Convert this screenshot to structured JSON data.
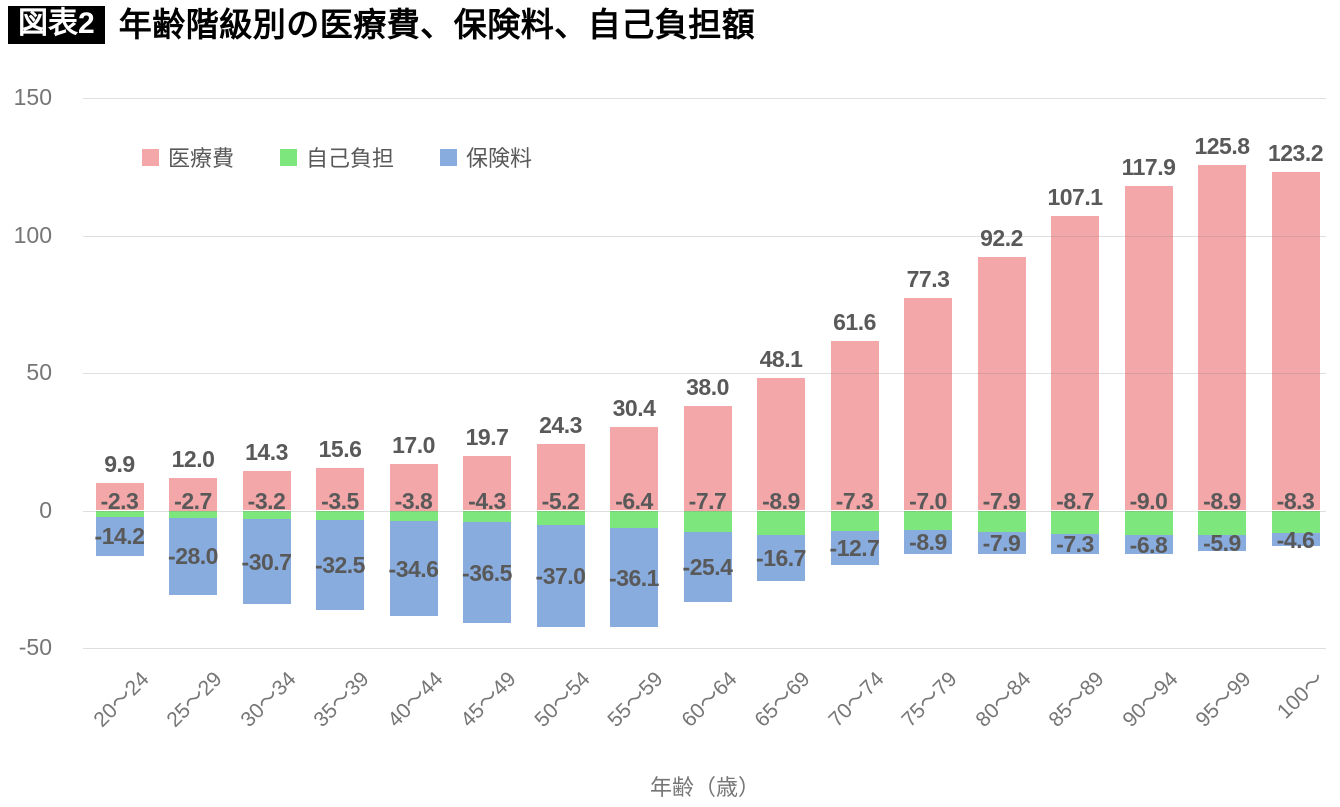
{
  "header": {
    "tag": "図表2",
    "title": "年齢階級別の医療費、保険料、自己負担額"
  },
  "chart_data": {
    "type": "bar",
    "stacked": true,
    "title": "年齢階級別の医療費、保険料、自己負担額",
    "xlabel": "年齢（歳）",
    "ylabel": "",
    "ylim": [
      -50,
      150
    ],
    "yticks": [
      150,
      100,
      50,
      0,
      -50
    ],
    "grid": true,
    "legend_position": "top-left",
    "categories": [
      "20～24",
      "25～29",
      "30～34",
      "35～39",
      "40～44",
      "45～49",
      "50～54",
      "55～59",
      "60～64",
      "65～69",
      "70～74",
      "75～79",
      "80～84",
      "85～89",
      "90～94",
      "95～99",
      "100～"
    ],
    "series": [
      {
        "name": "医療費",
        "color": "#F4A7A9",
        "values": [
          9.9,
          12.0,
          14.3,
          15.6,
          17.0,
          19.7,
          24.3,
          30.4,
          38.0,
          48.1,
          61.6,
          77.3,
          92.2,
          107.1,
          117.9,
          125.8,
          123.2
        ]
      },
      {
        "name": "自己負担",
        "color": "#7DE67D",
        "values": [
          -2.3,
          -2.7,
          -3.2,
          -3.5,
          -3.8,
          -4.3,
          -5.2,
          -6.4,
          -7.7,
          -8.9,
          -7.3,
          -7.0,
          -7.9,
          -8.7,
          -9.0,
          -8.9,
          -8.3
        ]
      },
      {
        "name": "保険料",
        "color": "#88ACDE",
        "values": [
          -14.2,
          -28.0,
          -30.7,
          -32.5,
          -34.6,
          -36.5,
          -37.0,
          -36.1,
          -25.4,
          -16.7,
          -12.7,
          -8.9,
          -7.9,
          -7.3,
          -6.8,
          -5.9,
          -4.6
        ]
      }
    ],
    "colors": {
      "data_label": "#595959",
      "axis_text": "#767676",
      "gridline": "#D9D9D9",
      "gridline_over_bars": "rgba(128,128,128,0.25)"
    }
  }
}
